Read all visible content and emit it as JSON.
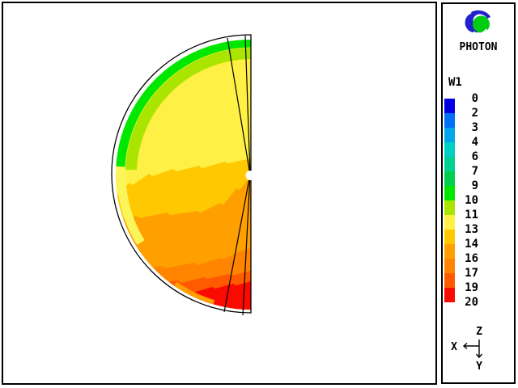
{
  "window": {
    "bg": "#FFFFFF",
    "frame_color": "#000000"
  },
  "panel": {
    "logo": {
      "blue": "#2222CC",
      "green": "#00CC11",
      "name": "photon-logo"
    },
    "brand_label": "PHOTON",
    "legend": {
      "title": "W1",
      "tick_labels": [
        "0",
        "2",
        "3",
        "4",
        "6",
        "7",
        "9",
        "10",
        "11",
        "13",
        "14",
        "16",
        "17",
        "19",
        "20"
      ],
      "colors": [
        "#0000E1",
        "#0070F8",
        "#00A6EC",
        "#00CFC4",
        "#00D093",
        "#00CE4E",
        "#00E800",
        "#A9E500",
        "#FFF046",
        "#FFC800",
        "#FFA000",
        "#FF8400",
        "#FF5A00",
        "#FA0A00"
      ]
    },
    "axes_triad": {
      "up_label": "Z",
      "left_label": "X",
      "down_label": "Y"
    }
  },
  "plot": {
    "outline_color": "#000000",
    "wedge_line_color": "#000000",
    "center_marker_color": "#FFFFFF",
    "pale_rim_band": "#FBF55C"
  },
  "chart_data": {
    "type": "heatmap",
    "style": "filled contour plot over a semicircular cross-section (left half-disk, flat vertical chord on the right, center of chord marked by a small white dot)",
    "quantity": "W1",
    "title": "W1",
    "levels": [
      0,
      2,
      3,
      4,
      6,
      7,
      9,
      10,
      11,
      13,
      14,
      16,
      17,
      19,
      20
    ],
    "palette": [
      "#0000E1",
      "#0070F8",
      "#00A6EC",
      "#00CFC4",
      "#00D093",
      "#00CE4E",
      "#00E800",
      "#A9E500",
      "#FFF046",
      "#FFC800",
      "#FFA000",
      "#FF8400",
      "#FF5A00",
      "#FA0A00"
    ],
    "value_range": [
      0,
      20
    ],
    "legend_position": "right panel, vertical color bar",
    "bands_top_to_bottom": [
      {
        "value_range": "9-10",
        "color": "#00E800",
        "color_name": "green",
        "location": "thin shell hugging the outer rim over the upper quadrant"
      },
      {
        "value_range": "10-11",
        "color": "#A9E500",
        "color_name": "yellow-green",
        "location": "shell just inside the green band"
      },
      {
        "value_range": "11-13",
        "color": "#FFF046",
        "color_name": "yellow",
        "location": "broad region filling most of the upper half of the disk"
      },
      {
        "value_range": "13-14",
        "color": "#FFC800",
        "color_name": "gold",
        "location": "wide band around the horizontal mid-plane"
      },
      {
        "value_range": "14-16",
        "color": "#FFA000",
        "color_name": "orange",
        "location": "broad band below the mid-plane"
      },
      {
        "value_range": "16-17",
        "color": "#FF8400",
        "color_name": "dark orange",
        "location": "band in the lower third"
      },
      {
        "value_range": "17-19",
        "color": "#FF5A00",
        "color_name": "orange-red",
        "location": "narrow band near the bottom"
      },
      {
        "value_range": "19-20",
        "color": "#FA0A00",
        "color_name": "red",
        "location": "bottom sector reaching the rim near the chord"
      }
    ],
    "annotations": {
      "center_marker": "small white dot at disk center on the chord",
      "wedge_lines": "two pairs of thin black lines radiate from the center dot, one narrow wedge to the top rim and one to the bottom rim",
      "rim_gap": "thin white gap between the colored field and the black semicircle outline"
    }
  }
}
